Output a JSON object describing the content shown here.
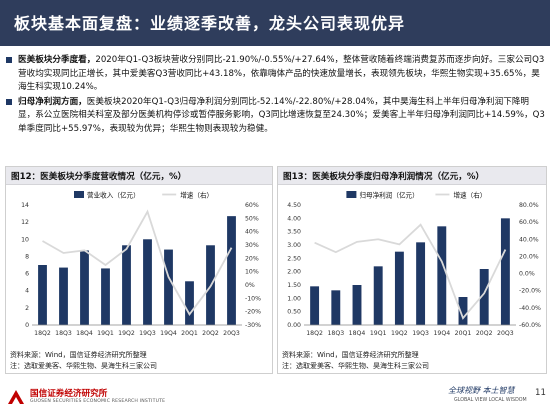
{
  "title": "板块基本面复盘：业绩逐季改善，龙头公司表现优异",
  "bullets": [
    {
      "lead": "医美板块分季度看，",
      "text": "2020年Q1-Q3板块营收分别同比-21.90%/-0.55%/+27.64%，整体营收随着终端消费复苏而逐步向好。三家公司Q3营收均实现同比正增长，其中爱美客Q3营收同比+43.18%，依靠嗨体产品的快速放量增长，表现领先板块，华熙生物实现+35.65%，昊海生科实现10.24%。"
    },
    {
      "lead": "归母净利润方面，",
      "text": "医美板块2020年Q1-Q3归母净利润分别同比-52.14%/-22.80%/+28.04%，其中昊海生科上半年归母净利润下降明显，系公立医院相关科室及部分医美机构停诊或暂停服务影响，Q3同比增速恢复至24.30%；爱美客上半年归母净利润同比+14.59%，Q3单季度同比+55.97%，表现较为优异；华熙生物则表现较为稳健。"
    }
  ],
  "figures": [
    {
      "caption": "图12：医美板块分季度营收情况（亿元，%）",
      "source": "资料来源：Wind，国信证券经济研究所整理",
      "note": "注：选取爱美客、华熙生物、昊海生科三家公司"
    },
    {
      "caption": "图13：医美板块分季度归母净利润情况（亿元，%）",
      "source": "资料来源：Wind，国信证券经济研究所整理",
      "note": "注：选取爱美客、华熙生物、昊海生科三家公司"
    }
  ],
  "chart_data": [
    {
      "type": "bar",
      "categories": [
        "18Q2",
        "18Q3",
        "18Q4",
        "19Q1",
        "19Q2",
        "19Q3",
        "19Q4",
        "20Q1",
        "20Q2",
        "20Q3"
      ],
      "series": [
        {
          "name": "营业收入（亿元）",
          "axis": "left",
          "type": "bar",
          "values": [
            7.0,
            6.7,
            8.7,
            6.6,
            9.3,
            10.0,
            8.8,
            5.1,
            9.3,
            12.7
          ]
        },
        {
          "name": "增速（右）",
          "axis": "right",
          "type": "line",
          "values": [
            33.0,
            24.0,
            26.0,
            15.0,
            27.0,
            55.0,
            6.0,
            -22.0,
            -1.0,
            28.0
          ]
        }
      ],
      "left_ylim": [
        0,
        14
      ],
      "left_ticks": [
        "0",
        "2",
        "4",
        "6",
        "8",
        "10",
        "12",
        "14"
      ],
      "right_ylim": [
        -30,
        60
      ],
      "right_ticks": [
        "-30%",
        "-20%",
        "-10%",
        "0%",
        "10%",
        "20%",
        "30%",
        "40%",
        "50%",
        "60%"
      ],
      "legend_position": "top",
      "colors": {
        "bar": "#1f3864",
        "line": "#d9d9d9"
      }
    },
    {
      "type": "bar",
      "categories": [
        "18Q2",
        "18Q3",
        "18Q4",
        "19Q1",
        "19Q2",
        "19Q3",
        "19Q4",
        "20Q1",
        "20Q2",
        "20Q3"
      ],
      "series": [
        {
          "name": "归母净利润（亿元）",
          "axis": "left",
          "type": "bar",
          "values": [
            1.45,
            1.3,
            1.5,
            2.2,
            2.75,
            3.1,
            3.7,
            1.05,
            2.1,
            4.0
          ]
        },
        {
          "name": "增速（右）",
          "axis": "right",
          "type": "line",
          "values": [
            36.0,
            25.0,
            37.0,
            40.0,
            34.0,
            57.0,
            14.0,
            -52.0,
            -23.0,
            28.0
          ]
        }
      ],
      "left_ylim": [
        0,
        4.5
      ],
      "left_ticks": [
        "0.00",
        "0.50",
        "1.00",
        "1.50",
        "2.00",
        "2.50",
        "3.00",
        "3.50",
        "4.00",
        "4.50"
      ],
      "right_ylim": [
        -60,
        80
      ],
      "right_ticks": [
        "-60.0%",
        "-40.0%",
        "-20.0%",
        "0.0%",
        "20.0%",
        "40.0%",
        "60.0%",
        "80.0%"
      ],
      "legend_position": "top",
      "colors": {
        "bar": "#1f3864",
        "line": "#d9d9d9"
      }
    }
  ],
  "footer": {
    "company_cn": "国信证券经济研究所",
    "company_en": "GUOSEN SECURITIES ECONOMIC RESEARCH INSTITUTE",
    "slogan_cn": "全球视野 本土智慧",
    "slogan_en": "GLOBAL VIEW  LOCAL WISDOM",
    "page": "11"
  }
}
